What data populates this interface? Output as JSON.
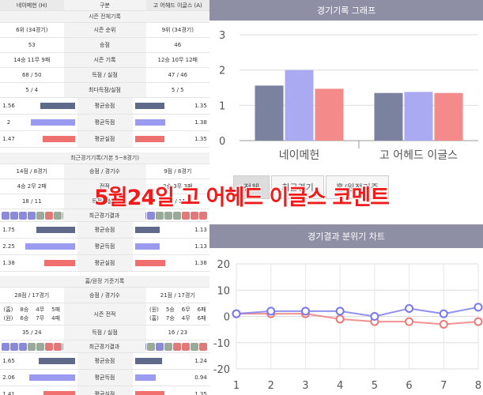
{
  "left": {
    "header": {
      "home": "네이메헌 (H)",
      "mid": "구분",
      "away": "고 어헤드 이글스 (A)"
    },
    "season_title": "시즌 전체기록",
    "season_rows": [
      {
        "home": "6위 (34경기)",
        "label": "시즌 순위",
        "away": "9위 (34경기)"
      },
      {
        "home": "53",
        "label": "승점",
        "away": "46"
      },
      {
        "home": "14승 11무 9패",
        "label": "시즌 기록",
        "away": "12승 10무 12패"
      },
      {
        "home": "68 / 50",
        "label": "득점 / 실점",
        "away": "47 / 46"
      },
      {
        "home": "5 / 4",
        "label": "최다득점/실점",
        "away": "5 / 5"
      }
    ],
    "season_bars": [
      {
        "home": 1.56,
        "label": "평균승점",
        "away": 1.35,
        "color": "#5f6a8a"
      },
      {
        "home": 2.0,
        "label": "평균득점",
        "away": 1.38,
        "color": "#9a9af0"
      },
      {
        "home": 1.47,
        "label": "평균실점",
        "away": 1.35,
        "color": "#f07070"
      }
    ],
    "recent_title": "최근경기기록(기본 5~8경기)",
    "recent_rows": [
      {
        "home": "14점 / 8경기",
        "label": "승점 / 경기수",
        "away": "9점 / 8경기"
      },
      {
        "home": "4승 2무 2패",
        "label": "전적",
        "away": "2승 3무 3패"
      },
      {
        "home": "18 / 11",
        "label": "득점 / 실점",
        "away": "9 / 11"
      }
    ],
    "recent_result_label": "최근경기결과",
    "recent_home_dots": [
      "승",
      "승",
      "승",
      "승",
      "무",
      "패",
      "무",
      "패"
    ],
    "recent_away_dots": [
      "승",
      "승",
      "무",
      "무",
      "무",
      "패",
      "패",
      "패"
    ],
    "recent_bars": [
      {
        "home": 1.75,
        "label": "평균승점",
        "away": 1.13,
        "color": "#5f6a8a"
      },
      {
        "home": 2.25,
        "label": "평균득점",
        "away": 1.13,
        "color": "#9a9af0"
      },
      {
        "home": 1.38,
        "label": "평균실점",
        "away": 1.38,
        "color": "#f07070"
      }
    ],
    "venue_title": "홈/원정 기준기록",
    "venue_rows": [
      {
        "home": "28점 / 17경기",
        "label": "승점 / 경기수",
        "away": "21점 / 17경기"
      }
    ],
    "venue_record": {
      "label": "시즌 전적",
      "home": [
        [
          "(홈)",
          "8승",
          "4무",
          "5패"
        ],
        [
          "(원)",
          "6승",
          "7무",
          "4패"
        ]
      ],
      "away": [
        [
          "(원)",
          "5승",
          "6무",
          "6패"
        ],
        [
          "(홈)",
          "7승",
          "4무",
          "6패"
        ]
      ]
    },
    "venue_goals": {
      "home": "35 / 24",
      "label": "득점 / 실점",
      "away": "16 / 23"
    },
    "venue_result_label": "최근경기결과",
    "venue_home_dots": [
      "승",
      "승",
      "승",
      "무",
      "무",
      "패",
      "패",
      "패"
    ],
    "venue_away_dots": [
      "승",
      "무",
      "승",
      "무",
      "패",
      "패",
      "무",
      "패"
    ],
    "venue_bars": [
      {
        "home": 1.65,
        "label": "평균승점",
        "away": 1.24,
        "color": "#5f6a8a"
      },
      {
        "home": 2.06,
        "label": "평균득점",
        "away": 0.94,
        "color": "#9a9af0"
      },
      {
        "home": 1.41,
        "label": "평균실점",
        "away": 1.35,
        "color": "#f07070"
      }
    ]
  },
  "right": {
    "record_graph_title": "경기기록 그래프",
    "tabs": [
      "전체",
      "최근경기",
      "홈/원정기준"
    ],
    "mood_chart_title": "경기결과 분위기 차트"
  },
  "overlay_text": "5월24일 고 어헤드 이글스 코멘트",
  "chart_data": [
    {
      "type": "bar",
      "categories": [
        "네이메헌",
        "고 어헤드 이글스"
      ],
      "series": [
        {
          "values": [
            1.56,
            1.35
          ],
          "color": "#7b82a0"
        },
        {
          "values": [
            2.0,
            1.38
          ],
          "color": "#aaaaf2"
        },
        {
          "values": [
            1.47,
            1.35
          ],
          "color": "#f58a8a"
        }
      ],
      "ylim": [
        0,
        3
      ],
      "yticks": [
        0,
        1,
        2,
        3
      ],
      "grid": true
    },
    {
      "type": "line",
      "x": [
        1,
        2,
        3,
        4,
        5,
        6,
        7,
        8
      ],
      "series": [
        {
          "values": [
            1,
            2,
            2,
            2,
            0,
            3,
            1,
            3.5
          ],
          "color": "#7777ee"
        },
        {
          "values": [
            1,
            1,
            1,
            -1,
            -2,
            -2,
            -3,
            -2
          ],
          "color": "#ee7777"
        }
      ],
      "ylim": [
        -20,
        20
      ],
      "yticks": [
        -20,
        -10,
        0,
        10,
        20
      ],
      "grid": true
    }
  ]
}
